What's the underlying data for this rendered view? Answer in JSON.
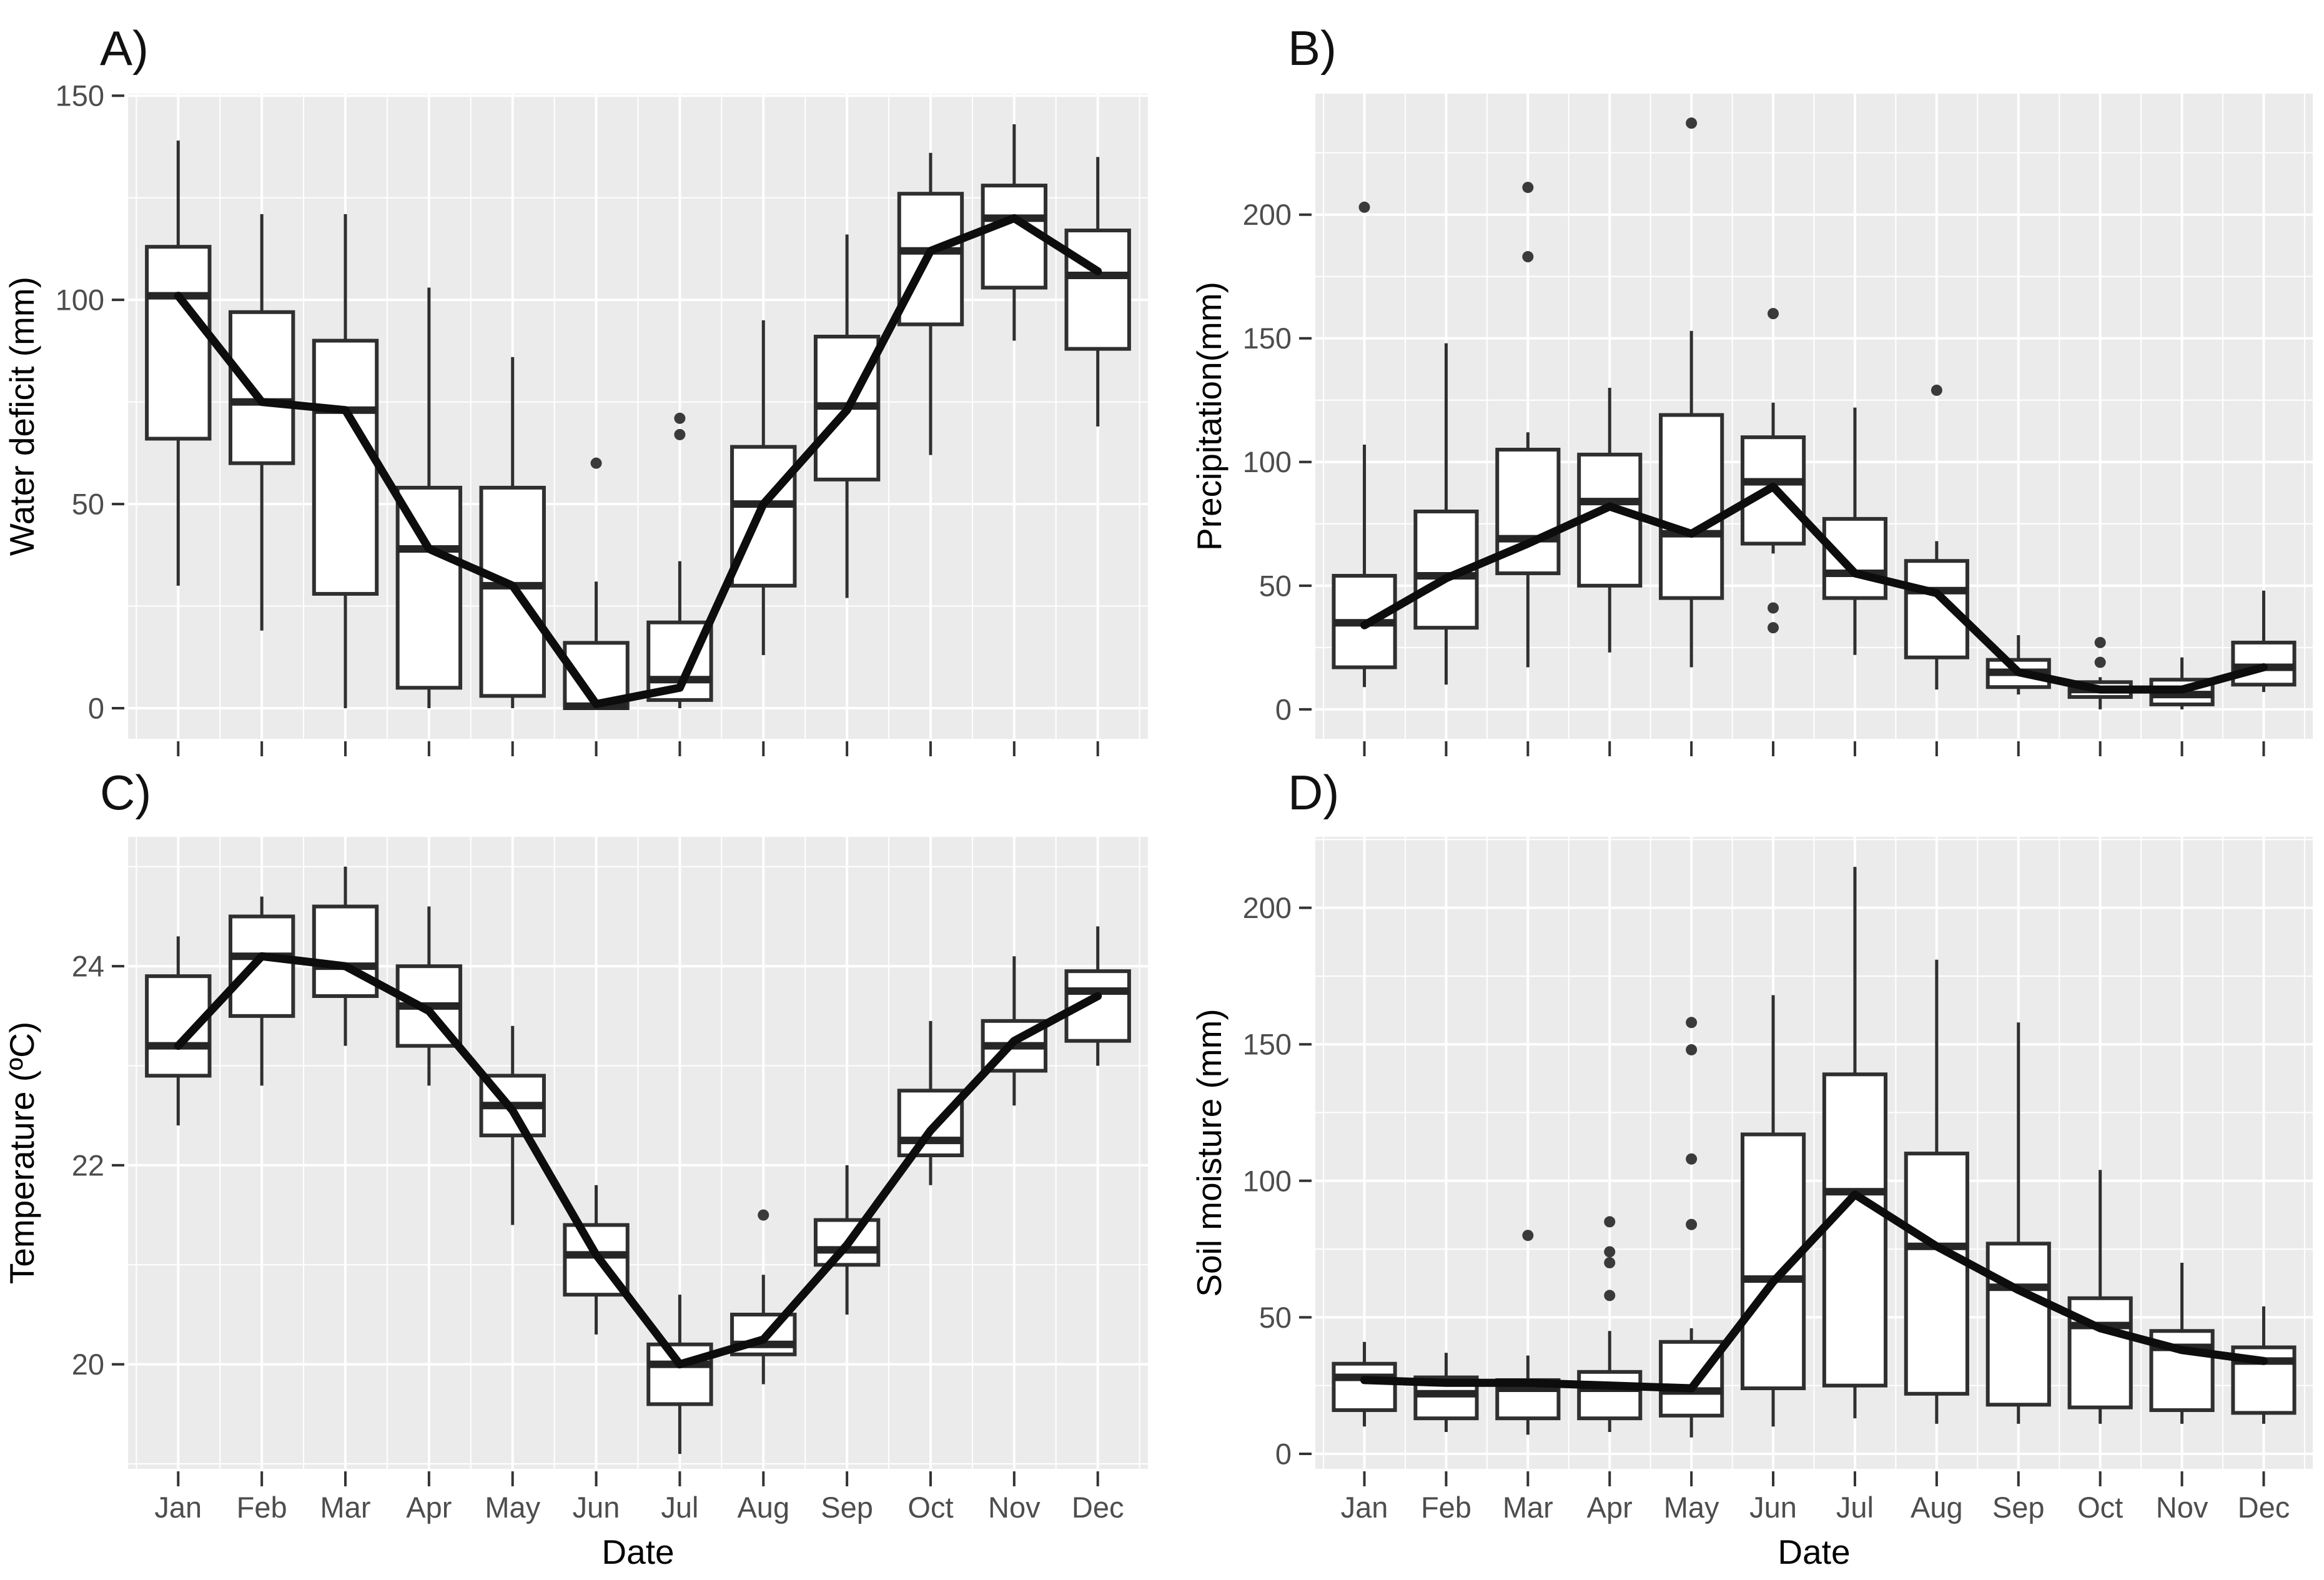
{
  "figure": {
    "kind": "four-panel monthly boxplot figure with trend lines",
    "background": "#ffffff",
    "panel_background": "#ebebeb",
    "gridline_color": "#ffffff",
    "box_color": "#2f2f2f",
    "trend_color": "#0d0d0d",
    "tick_text_color": "#4d4d4d"
  },
  "chart_data": [
    {
      "id": "A",
      "type": "boxplot",
      "panel_label": "A)",
      "ylabel": "Water deficit (mm)",
      "xlabel": "",
      "show_x_labels": false,
      "categories": [
        "Jan",
        "Feb",
        "Mar",
        "Apr",
        "May",
        "Jun",
        "Jul",
        "Aug",
        "Sep",
        "Oct",
        "Nov",
        "Dec"
      ],
      "y_ticks": [
        0,
        50,
        100,
        150
      ],
      "y_minor_ticks": [
        25,
        75,
        125
      ],
      "ylim": [
        -7.5,
        150.5
      ],
      "boxes": [
        {
          "month": "Jan",
          "low": 30,
          "q1": 66,
          "median": 101,
          "q3": 113,
          "high": 139,
          "outliers": []
        },
        {
          "month": "Feb",
          "low": 19,
          "q1": 60,
          "median": 75,
          "q3": 97,
          "high": 121,
          "outliers": []
        },
        {
          "month": "Mar",
          "low": 0,
          "q1": 28,
          "median": 73,
          "q3": 90,
          "high": 121,
          "outliers": []
        },
        {
          "month": "Apr",
          "low": 0,
          "q1": 5,
          "median": 39,
          "q3": 54,
          "high": 103,
          "outliers": []
        },
        {
          "month": "May",
          "low": 0,
          "q1": 3,
          "median": 30,
          "q3": 54,
          "high": 86,
          "outliers": []
        },
        {
          "month": "Jun",
          "low": 0,
          "q1": 0,
          "median": 0.5,
          "q3": 16,
          "high": 31,
          "outliers": [
            60
          ]
        },
        {
          "month": "Jul",
          "low": 0,
          "q1": 2,
          "median": 7,
          "q3": 21,
          "high": 36,
          "outliers": [
            67,
            71
          ]
        },
        {
          "month": "Aug",
          "low": 13,
          "q1": 30,
          "median": 50,
          "q3": 64,
          "high": 95,
          "outliers": []
        },
        {
          "month": "Sep",
          "low": 27,
          "q1": 56,
          "median": 74,
          "q3": 91,
          "high": 116,
          "outliers": []
        },
        {
          "month": "Oct",
          "low": 62,
          "q1": 94,
          "median": 112,
          "q3": 126,
          "high": 136,
          "outliers": []
        },
        {
          "month": "Nov",
          "low": 90,
          "q1": 103,
          "median": 120,
          "q3": 128,
          "high": 143,
          "outliers": []
        },
        {
          "month": "Dec",
          "low": 69,
          "q1": 88,
          "median": 106,
          "q3": 117,
          "high": 135,
          "outliers": []
        }
      ],
      "trend": [
        101,
        75,
        73,
        39,
        30,
        1,
        5,
        50,
        73,
        112,
        120,
        107
      ]
    },
    {
      "id": "B",
      "type": "boxplot",
      "panel_label": "B)",
      "ylabel": "Precipitation(mm)",
      "xlabel": "",
      "show_x_labels": false,
      "categories": [
        "Jan",
        "Feb",
        "Mar",
        "Apr",
        "May",
        "Jun",
        "Jul",
        "Aug",
        "Sep",
        "Oct",
        "Nov",
        "Dec"
      ],
      "y_ticks": [
        0,
        50,
        100,
        150,
        200
      ],
      "y_minor_ticks": [
        25,
        75,
        125,
        175,
        225
      ],
      "ylim": [
        -11.9,
        248.9
      ],
      "boxes": [
        {
          "month": "Jan",
          "low": 9,
          "q1": 17,
          "median": 35,
          "q3": 54,
          "high": 107,
          "outliers": [
            203
          ]
        },
        {
          "month": "Feb",
          "low": 10,
          "q1": 33,
          "median": 54,
          "q3": 80,
          "high": 148,
          "outliers": []
        },
        {
          "month": "Mar",
          "low": 17,
          "q1": 55,
          "median": 69,
          "q3": 105,
          "high": 112,
          "outliers": [
            183,
            211
          ]
        },
        {
          "month": "Apr",
          "low": 23,
          "q1": 50,
          "median": 84,
          "q3": 103,
          "high": 130,
          "outliers": []
        },
        {
          "month": "May",
          "low": 17,
          "q1": 45,
          "median": 71,
          "q3": 119,
          "high": 153,
          "outliers": [
            237
          ]
        },
        {
          "month": "Jun",
          "low": 63,
          "q1": 67,
          "median": 92,
          "q3": 110,
          "high": 124,
          "outliers": [
            160,
            41,
            33
          ]
        },
        {
          "month": "Jul",
          "low": 22,
          "q1": 45,
          "median": 55,
          "q3": 77,
          "high": 122,
          "outliers": []
        },
        {
          "month": "Aug",
          "low": 8,
          "q1": 21,
          "median": 48,
          "q3": 60,
          "high": 68,
          "outliers": [
            129
          ]
        },
        {
          "month": "Sep",
          "low": 6,
          "q1": 9,
          "median": 15,
          "q3": 20,
          "high": 30,
          "outliers": []
        },
        {
          "month": "Oct",
          "low": 0,
          "q1": 5,
          "median": 8,
          "q3": 11,
          "high": 13,
          "outliers": [
            27,
            19
          ]
        },
        {
          "month": "Nov",
          "low": 0,
          "q1": 2,
          "median": 6,
          "q3": 12,
          "high": 21,
          "outliers": []
        },
        {
          "month": "Dec",
          "low": 7,
          "q1": 10,
          "median": 17,
          "q3": 27,
          "high": 48,
          "outliers": []
        }
      ],
      "trend": [
        34,
        53,
        67,
        82,
        71,
        90,
        55,
        47,
        15,
        8,
        8,
        17
      ]
    },
    {
      "id": "C",
      "type": "boxplot",
      "panel_label": "C)",
      "ylabel": "Temperature (ºC)",
      "xlabel": "Date",
      "show_x_labels": true,
      "categories": [
        "Jan",
        "Feb",
        "Mar",
        "Apr",
        "May",
        "Jun",
        "Jul",
        "Aug",
        "Sep",
        "Oct",
        "Nov",
        "Dec"
      ],
      "y_ticks": [
        20,
        22,
        24
      ],
      "y_minor_ticks": [
        19,
        21,
        23,
        25
      ],
      "ylim": [
        18.95,
        25.3
      ],
      "boxes": [
        {
          "month": "Jan",
          "low": 22.4,
          "q1": 22.9,
          "median": 23.2,
          "q3": 23.9,
          "high": 24.3,
          "outliers": []
        },
        {
          "month": "Feb",
          "low": 22.8,
          "q1": 23.5,
          "median": 24.1,
          "q3": 24.5,
          "high": 24.7,
          "outliers": []
        },
        {
          "month": "Mar",
          "low": 23.2,
          "q1": 23.7,
          "median": 24.0,
          "q3": 24.6,
          "high": 25.0,
          "outliers": []
        },
        {
          "month": "Apr",
          "low": 22.8,
          "q1": 23.2,
          "median": 23.6,
          "q3": 24.0,
          "high": 24.6,
          "outliers": []
        },
        {
          "month": "May",
          "low": 21.4,
          "q1": 22.3,
          "median": 22.6,
          "q3": 22.9,
          "high": 23.4,
          "outliers": []
        },
        {
          "month": "Jun",
          "low": 20.3,
          "q1": 20.7,
          "median": 21.1,
          "q3": 21.4,
          "high": 21.8,
          "outliers": []
        },
        {
          "month": "Jul",
          "low": 19.1,
          "q1": 19.6,
          "median": 20.0,
          "q3": 20.2,
          "high": 20.7,
          "outliers": []
        },
        {
          "month": "Aug",
          "low": 19.8,
          "q1": 20.1,
          "median": 20.2,
          "q3": 20.5,
          "high": 20.9,
          "outliers": [
            21.5
          ]
        },
        {
          "month": "Sep",
          "low": 20.5,
          "q1": 21.0,
          "median": 21.15,
          "q3": 21.45,
          "high": 22.0,
          "outliers": []
        },
        {
          "month": "Oct",
          "low": 21.8,
          "q1": 22.1,
          "median": 22.25,
          "q3": 22.75,
          "high": 23.45,
          "outliers": []
        },
        {
          "month": "Nov",
          "low": 22.6,
          "q1": 22.95,
          "median": 23.2,
          "q3": 23.45,
          "high": 24.1,
          "outliers": []
        },
        {
          "month": "Dec",
          "low": 23.0,
          "q1": 23.25,
          "median": 23.75,
          "q3": 23.95,
          "high": 24.4,
          "outliers": []
        }
      ],
      "trend": [
        23.2,
        24.1,
        24.0,
        23.55,
        22.55,
        21.1,
        20.0,
        20.25,
        21.2,
        22.35,
        23.25,
        23.7
      ]
    },
    {
      "id": "D",
      "type": "boxplot",
      "panel_label": "D)",
      "ylabel": "Soil moisture (mm)",
      "xlabel": "Date",
      "show_x_labels": true,
      "categories": [
        "Jan",
        "Feb",
        "Mar",
        "Apr",
        "May",
        "Jun",
        "Jul",
        "Aug",
        "Sep",
        "Oct",
        "Nov",
        "Dec"
      ],
      "y_ticks": [
        0,
        50,
        100,
        150,
        200
      ],
      "y_minor_ticks": [
        25,
        75,
        125,
        175,
        225
      ],
      "ylim": [
        -5.5,
        226
      ],
      "boxes": [
        {
          "month": "Jan",
          "low": 10,
          "q1": 16,
          "median": 28,
          "q3": 33,
          "high": 41,
          "outliers": []
        },
        {
          "month": "Feb",
          "low": 8,
          "q1": 13,
          "median": 22,
          "q3": 28,
          "high": 37,
          "outliers": []
        },
        {
          "month": "Mar",
          "low": 7,
          "q1": 13,
          "median": 24,
          "q3": 27,
          "high": 36,
          "outliers": [
            80
          ]
        },
        {
          "month": "Apr",
          "low": 8,
          "q1": 13,
          "median": 24,
          "q3": 30,
          "high": 45,
          "outliers": [
            58,
            70,
            74,
            85
          ]
        },
        {
          "month": "May",
          "low": 6,
          "q1": 14,
          "median": 23,
          "q3": 41,
          "high": 46,
          "outliers": [
            84,
            108,
            148,
            158
          ]
        },
        {
          "month": "Jun",
          "low": 10,
          "q1": 24,
          "median": 64,
          "q3": 117,
          "high": 168,
          "outliers": []
        },
        {
          "month": "Jul",
          "low": 13,
          "q1": 25,
          "median": 96,
          "q3": 139,
          "high": 215,
          "outliers": []
        },
        {
          "month": "Aug",
          "low": 11,
          "q1": 22,
          "median": 76,
          "q3": 110,
          "high": 181,
          "outliers": []
        },
        {
          "month": "Sep",
          "low": 11,
          "q1": 18,
          "median": 61,
          "q3": 77,
          "high": 158,
          "outliers": []
        },
        {
          "month": "Oct",
          "low": 11,
          "q1": 17,
          "median": 47,
          "q3": 57,
          "high": 104,
          "outliers": []
        },
        {
          "month": "Nov",
          "low": 11,
          "q1": 16,
          "median": 39,
          "q3": 45,
          "high": 70,
          "outliers": []
        },
        {
          "month": "Dec",
          "low": 11,
          "q1": 15,
          "median": 34,
          "q3": 39,
          "high": 54,
          "outliers": []
        }
      ],
      "trend": [
        27,
        26,
        26,
        25,
        24,
        63,
        95,
        76,
        60,
        46,
        38,
        34
      ]
    }
  ]
}
